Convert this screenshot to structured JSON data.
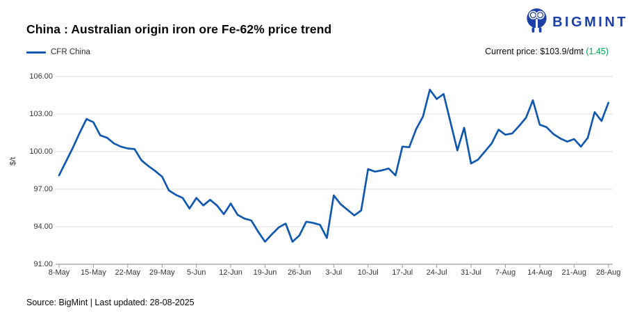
{
  "header": {
    "title": "China : Australian origin iron ore Fe-62% price trend",
    "logo_text": "BIGMINT",
    "logo_color": "#1d3fa8"
  },
  "legend": {
    "series_label": "CFR China"
  },
  "current_price": {
    "label": "Current price:",
    "value": "$103.9/dmt",
    "change": "(1.45)",
    "change_color": "#00a651"
  },
  "footer": {
    "source": "Source: BigMint | Last updated: 28-08-2025"
  },
  "chart_data": {
    "type": "line",
    "title": "China : Australian origin iron ore Fe-62% price trend",
    "xlabel": "",
    "ylabel": "$/t",
    "ylim": [
      91,
      106
    ],
    "y_ticks": [
      106,
      103,
      100,
      97,
      94,
      91
    ],
    "y_tick_labels": [
      "106.00",
      "103.00",
      "100.00",
      "97.00",
      "94.00",
      "91.00"
    ],
    "x_tick_labels": [
      "8-May",
      "15-May",
      "22-May",
      "29-May",
      "5-Jun",
      "12-Jun",
      "19-Jun",
      "26-Jun",
      "3-Jul",
      "10-Jul",
      "17-Jul",
      "24-Jul",
      "31-Jul",
      "7-Aug",
      "14-Aug",
      "21-Aug",
      "28-Aug"
    ],
    "grid": "horizontal",
    "legend_position": "top-left",
    "line_color": "#1057B0",
    "grid_color": "#dedede",
    "axis_color": "#9b9b9b",
    "series": [
      {
        "name": "CFR China",
        "unit": "$/t",
        "dates": [
          "8-May",
          "9-May",
          "12-May",
          "13-May",
          "14-May",
          "15-May",
          "16-May",
          "19-May",
          "20-May",
          "21-May",
          "22-May",
          "23-May",
          "26-May",
          "27-May",
          "28-May",
          "29-May",
          "30-May",
          "2-Jun",
          "3-Jun",
          "4-Jun",
          "5-Jun",
          "6-Jun",
          "9-Jun",
          "10-Jun",
          "11-Jun",
          "12-Jun",
          "13-Jun",
          "16-Jun",
          "17-Jun",
          "18-Jun",
          "19-Jun",
          "20-Jun",
          "23-Jun",
          "24-Jun",
          "25-Jun",
          "26-Jun",
          "27-Jun",
          "30-Jun",
          "1-Jul",
          "2-Jul",
          "3-Jul",
          "4-Jul",
          "7-Jul",
          "8-Jul",
          "9-Jul",
          "10-Jul",
          "11-Jul",
          "14-Jul",
          "15-Jul",
          "16-Jul",
          "17-Jul",
          "18-Jul",
          "21-Jul",
          "22-Jul",
          "23-Jul",
          "24-Jul",
          "25-Jul",
          "28-Jul",
          "29-Jul",
          "30-Jul",
          "31-Jul",
          "1-Aug",
          "4-Aug",
          "5-Aug",
          "6-Aug",
          "7-Aug",
          "8-Aug",
          "11-Aug",
          "12-Aug",
          "13-Aug",
          "14-Aug",
          "15-Aug",
          "18-Aug",
          "19-Aug",
          "20-Aug",
          "21-Aug",
          "22-Aug",
          "25-Aug",
          "26-Aug",
          "27-Aug",
          "28-Aug"
        ],
        "values": [
          98.1,
          99.2,
          100.3,
          101.5,
          102.6,
          102.35,
          101.3,
          101.1,
          100.65,
          100.4,
          100.25,
          100.2,
          99.3,
          98.85,
          98.45,
          98.0,
          96.9,
          96.55,
          96.3,
          95.45,
          96.3,
          95.7,
          96.15,
          95.7,
          95.0,
          95.85,
          94.95,
          94.65,
          94.5,
          93.6,
          92.8,
          93.4,
          93.95,
          94.25,
          92.8,
          93.3,
          94.4,
          94.3,
          94.15,
          93.1,
          96.5,
          95.8,
          95.35,
          94.9,
          95.3,
          98.6,
          98.4,
          98.5,
          98.65,
          98.1,
          100.4,
          100.35,
          101.8,
          102.8,
          104.95,
          104.2,
          104.6,
          102.35,
          100.1,
          101.9,
          99.05,
          99.35,
          100.0,
          100.65,
          101.75,
          101.35,
          101.45,
          102.05,
          102.7,
          104.1,
          102.15,
          101.95,
          101.4,
          101.05,
          100.8,
          101.0,
          100.4,
          101.1,
          103.15,
          102.45,
          103.9
        ]
      }
    ]
  }
}
